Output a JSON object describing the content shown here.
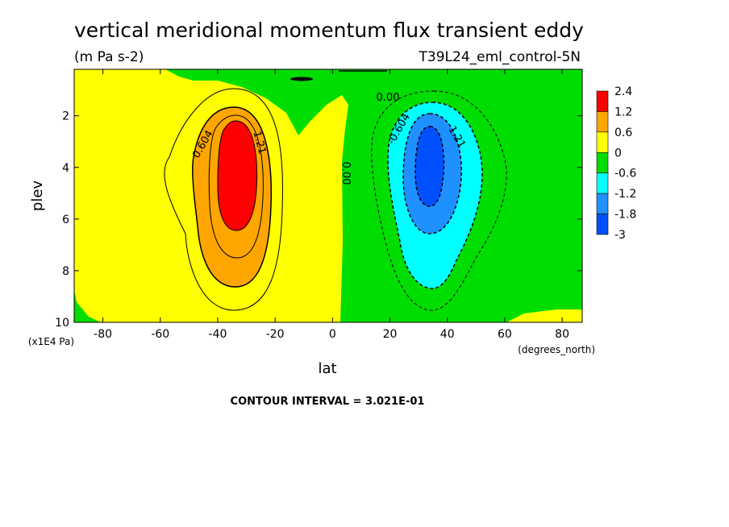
{
  "chart_data": {
    "type": "contour",
    "title": "vertical meridional momentum flux transient eddy",
    "units": "(m Pa s-2)",
    "run_label": "T39L24_eml_control-5N",
    "xlabel": "lat",
    "x_units": "(degrees_north)",
    "ylabel": "plev",
    "y_units": "(x1E4 Pa)",
    "xlim": [
      -90,
      87
    ],
    "ylim": [
      10,
      0.2
    ],
    "x_ticks": [
      "-80",
      "-60",
      "-40",
      "-20",
      "0",
      "20",
      "40",
      "60",
      "80"
    ],
    "y_ticks": [
      "2",
      "4",
      "6",
      "8",
      "10"
    ],
    "colorbar": {
      "labels": [
        "2.4",
        "1.2",
        "0.6",
        "0",
        "-0.6",
        "-1.2",
        "-1.8",
        "-3"
      ],
      "colors": [
        "#ff0000",
        "#ffa500",
        "#ffff00",
        "#00dd00",
        "#00ffff",
        "#1e90ff",
        "#0050ff"
      ]
    },
    "contour_labels": [
      "0.604",
      "1.21",
      "0.00",
      "0.00",
      "-0.604",
      "-1.21"
    ],
    "features": [
      {
        "name": "positive-maximum",
        "lat": -31,
        "plev": 3.8,
        "value_range": "> 1.2"
      },
      {
        "name": "negative-minimum",
        "lat": 35,
        "plev": 3.6,
        "value_range": "< -1.8"
      }
    ],
    "footer": "CONTOUR INTERVAL = 3.021E-01"
  }
}
